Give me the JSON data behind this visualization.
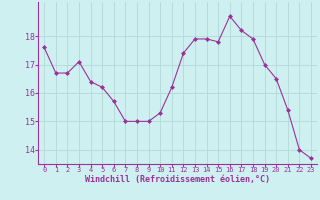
{
  "x": [
    0,
    1,
    2,
    3,
    4,
    5,
    6,
    7,
    8,
    9,
    10,
    11,
    12,
    13,
    14,
    15,
    16,
    17,
    18,
    19,
    20,
    21,
    22,
    23
  ],
  "y": [
    17.6,
    16.7,
    16.7,
    17.1,
    16.4,
    16.2,
    15.7,
    15.0,
    15.0,
    15.0,
    15.3,
    16.2,
    17.4,
    17.9,
    17.9,
    17.8,
    18.7,
    18.2,
    17.9,
    17.0,
    16.5,
    15.4,
    14.0,
    13.7
  ],
  "line_color": "#993399",
  "marker": "D",
  "marker_size": 2.0,
  "bg_color": "#cff0f0",
  "grid_color": "#b0d8d8",
  "xlabel": "Windchill (Refroidissement éolien,°C)",
  "xlabel_color": "#993399",
  "tick_color": "#993399",
  "ylim": [
    13.5,
    19.2
  ],
  "yticks": [
    14,
    15,
    16,
    17,
    18
  ],
  "xticks": [
    0,
    1,
    2,
    3,
    4,
    5,
    6,
    7,
    8,
    9,
    10,
    11,
    12,
    13,
    14,
    15,
    16,
    17,
    18,
    19,
    20,
    21,
    22,
    23
  ]
}
